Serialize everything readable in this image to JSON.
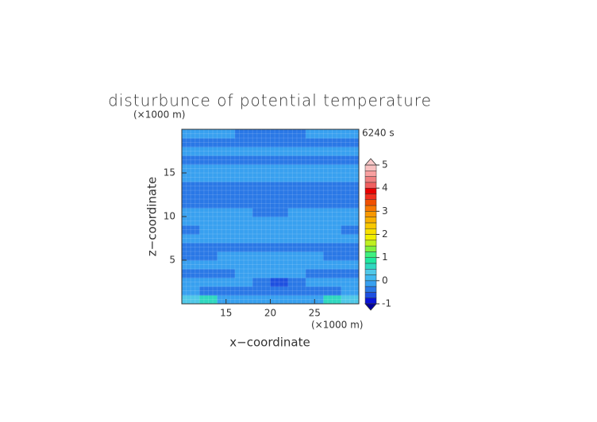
{
  "chart_data": {
    "type": "contour",
    "title": "disturbunce of potential temperature",
    "y_unit": "(×1000 m)",
    "x_unit": "(×1000 m)",
    "time_label": "6240 s",
    "xlabel": "x−coordinate",
    "ylabel": "z−coordinate",
    "xlim": [
      10,
      30
    ],
    "ylim": [
      0,
      20
    ],
    "xticks": [
      15,
      20,
      25
    ],
    "yticks": [
      5,
      10,
      15
    ],
    "z": [
      [
        0.3,
        0.6,
        -0.1,
        -0.1,
        -0.1,
        -0.1,
        -0.1,
        -0.1,
        0.6,
        0.3
      ],
      [
        -0.1,
        -0.35,
        -0.35,
        -0.35,
        -0.35,
        -0.35,
        -0.35,
        -0.35,
        -0.35,
        -0.1
      ],
      [
        -0.1,
        -0.1,
        -0.1,
        -0.1,
        -0.35,
        -0.6,
        -0.35,
        -0.1,
        -0.1,
        -0.1
      ],
      [
        -0.35,
        -0.35,
        -0.35,
        -0.1,
        -0.1,
        -0.1,
        -0.1,
        -0.35,
        -0.35,
        -0.35
      ],
      [
        -0.1,
        -0.1,
        -0.1,
        -0.1,
        -0.1,
        -0.1,
        -0.1,
        -0.1,
        -0.1,
        -0.1
      ],
      [
        -0.35,
        -0.35,
        -0.1,
        -0.1,
        -0.1,
        -0.1,
        -0.1,
        -0.1,
        -0.35,
        -0.35
      ],
      [
        -0.35,
        -0.35,
        -0.35,
        -0.35,
        -0.35,
        -0.35,
        -0.35,
        -0.35,
        -0.35,
        -0.35
      ],
      [
        -0.1,
        -0.1,
        -0.1,
        -0.1,
        -0.1,
        -0.1,
        -0.1,
        -0.1,
        -0.1,
        -0.1
      ],
      [
        -0.35,
        -0.1,
        -0.1,
        -0.1,
        -0.1,
        -0.1,
        -0.1,
        -0.1,
        -0.1,
        -0.35
      ],
      [
        -0.1,
        -0.1,
        -0.1,
        -0.1,
        -0.1,
        -0.1,
        -0.1,
        -0.1,
        -0.1,
        -0.1
      ],
      [
        -0.1,
        -0.1,
        -0.1,
        -0.1,
        -0.35,
        -0.35,
        -0.1,
        -0.1,
        -0.1,
        -0.1
      ],
      [
        -0.35,
        -0.35,
        -0.35,
        -0.35,
        -0.35,
        -0.35,
        -0.35,
        -0.35,
        -0.35,
        -0.35
      ],
      [
        -0.35,
        -0.35,
        -0.35,
        -0.35,
        -0.35,
        -0.35,
        -0.35,
        -0.35,
        -0.35,
        -0.35
      ],
      [
        -0.35,
        -0.35,
        -0.35,
        -0.35,
        -0.35,
        -0.35,
        -0.35,
        -0.35,
        -0.35,
        -0.35
      ],
      [
        -0.1,
        -0.1,
        -0.1,
        -0.1,
        -0.1,
        -0.1,
        -0.1,
        -0.1,
        -0.1,
        -0.1
      ],
      [
        -0.1,
        -0.1,
        -0.1,
        -0.1,
        -0.1,
        -0.1,
        -0.1,
        -0.1,
        -0.1,
        -0.1
      ],
      [
        -0.35,
        -0.35,
        -0.35,
        -0.35,
        -0.35,
        -0.35,
        -0.35,
        -0.35,
        -0.35,
        -0.35
      ],
      [
        -0.1,
        -0.1,
        -0.1,
        -0.1,
        -0.1,
        -0.1,
        -0.1,
        -0.1,
        -0.1,
        -0.1
      ],
      [
        -0.35,
        -0.35,
        -0.35,
        -0.35,
        -0.35,
        -0.35,
        -0.35,
        -0.35,
        -0.35,
        -0.35
      ],
      [
        -0.1,
        -0.1,
        -0.1,
        -0.35,
        -0.35,
        -0.35,
        -0.35,
        -0.1,
        -0.1,
        -0.1
      ]
    ],
    "colorbar": {
      "levels": [
        -1,
        -0.75,
        -0.5,
        -0.25,
        0,
        0.25,
        0.5,
        0.75,
        1,
        1.25,
        1.5,
        1.75,
        2,
        2.25,
        2.5,
        2.75,
        3,
        3.25,
        3.5,
        3.75,
        4,
        4.25,
        4.5,
        4.75,
        5
      ],
      "colors": [
        "#0a14d8",
        "#1e50e0",
        "#2a78e6",
        "#38a0f0",
        "#40b8f0",
        "#50c8e8",
        "#30d8c0",
        "#20e8a0",
        "#40f080",
        "#80f040",
        "#c0f020",
        "#f0f000",
        "#f8e000",
        "#f8c800",
        "#f8b000",
        "#f89800",
        "#f87800",
        "#f05000",
        "#f03020",
        "#e80000",
        "#f06060",
        "#f08080",
        "#f8a0a0",
        "#f8c0c0"
      ],
      "low_color": "#0000a0",
      "high_color": "#f8c8c8",
      "ticks": [
        -1,
        0,
        1,
        2,
        3,
        4,
        5
      ]
    }
  }
}
